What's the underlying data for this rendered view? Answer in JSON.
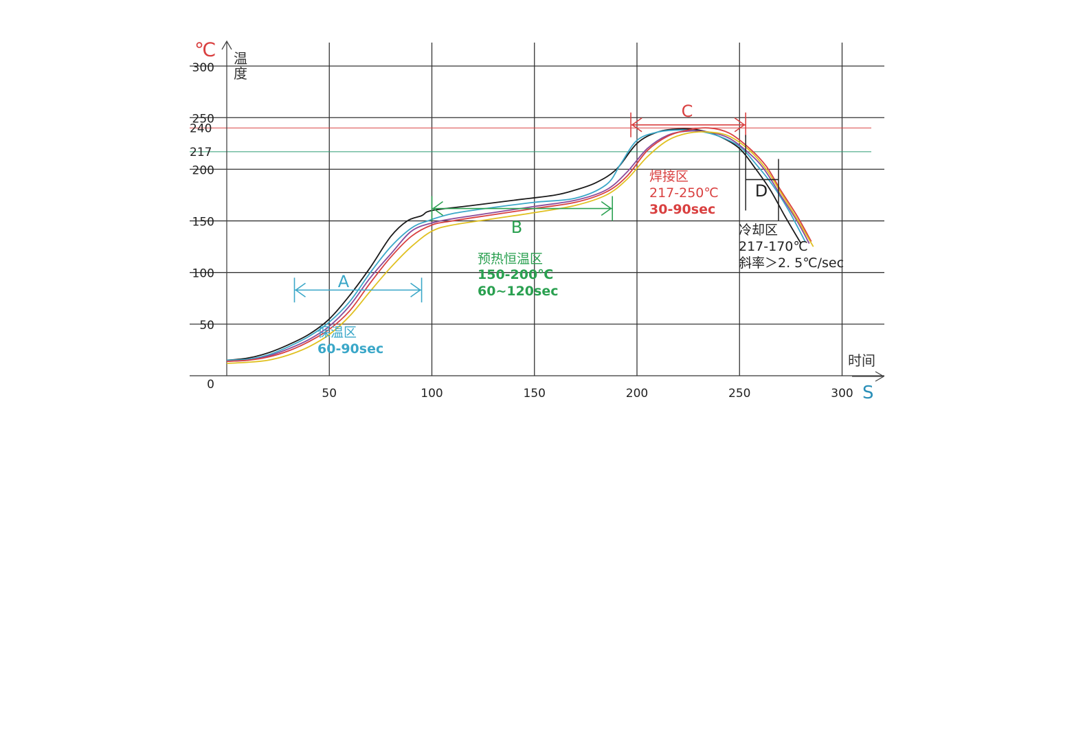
{
  "chart_data": {
    "type": "line",
    "x_unit": "S",
    "x_label": "时间",
    "y_unit": "℃",
    "y_label": "温度",
    "x_ticks": [
      50,
      100,
      150,
      200,
      250,
      300
    ],
    "y_ticks": [
      0,
      50,
      100,
      150,
      200,
      250,
      300
    ],
    "xlim": [
      0,
      320
    ],
    "ylim": [
      0,
      300
    ],
    "grid": true,
    "reference_lines": [
      {
        "value": 240,
        "label": "240",
        "color": "#d94040"
      },
      {
        "value": 217,
        "label": "217",
        "color": "#2a9a70"
      }
    ],
    "zones": [
      {
        "letter": "A",
        "color": "#3aa7c8",
        "x_start": 33,
        "x_end": 95,
        "y": 83,
        "lines": [
          "保温区",
          "60-90sec"
        ]
      },
      {
        "letter": "B",
        "color": "#2aa050",
        "x_start": 100,
        "x_end": 188,
        "y": 162,
        "lines": [
          "预热恒温区",
          "150-200℃",
          "60~120sec"
        ]
      },
      {
        "letter": "C",
        "color": "#d94040",
        "x_start": 197,
        "x_end": 253,
        "y": 243,
        "lines": [
          "焊接区",
          "217-250℃",
          "30-90sec"
        ]
      },
      {
        "letter": "D",
        "color": "#222222",
        "x_start": 253,
        "x_end": 269,
        "y": 190,
        "lines": [
          "冷却区",
          "217-170℃",
          "斜率＞2. 5℃/sec"
        ]
      }
    ],
    "series": [
      {
        "color": "#1a1a1a",
        "x": [
          0,
          10,
          20,
          30,
          40,
          50,
          60,
          70,
          80,
          88,
          95,
          100,
          120,
          140,
          160,
          170,
          180,
          190,
          200,
          210,
          220,
          230,
          240,
          250,
          258,
          265,
          272,
          280
        ],
        "y": [
          15,
          17,
          22,
          30,
          40,
          55,
          78,
          105,
          135,
          150,
          155,
          160,
          165,
          170,
          175,
          180,
          187,
          200,
          225,
          236,
          239,
          238,
          232,
          220,
          200,
          180,
          155,
          128
        ]
      },
      {
        "color": "#3aa7c8",
        "x": [
          0,
          10,
          20,
          30,
          40,
          50,
          60,
          70,
          80,
          90,
          98,
          110,
          130,
          150,
          170,
          185,
          192,
          200,
          210,
          220,
          230,
          240,
          250,
          258,
          266,
          274,
          282
        ],
        "y": [
          15,
          16,
          20,
          28,
          38,
          52,
          72,
          100,
          125,
          143,
          150,
          157,
          163,
          168,
          172,
          185,
          205,
          228,
          236,
          238,
          237,
          232,
          222,
          205,
          185,
          160,
          130
        ]
      },
      {
        "color": "#8a4a9a",
        "x": [
          0,
          10,
          20,
          30,
          40,
          50,
          60,
          70,
          80,
          90,
          100,
          110,
          130,
          150,
          170,
          185,
          195,
          205,
          215,
          225,
          235,
          245,
          255,
          262,
          270,
          278,
          284
        ],
        "y": [
          14,
          15,
          19,
          26,
          35,
          48,
          68,
          95,
          118,
          140,
          148,
          152,
          158,
          164,
          170,
          180,
          197,
          220,
          233,
          237,
          236,
          230,
          215,
          200,
          175,
          150,
          128
        ]
      },
      {
        "color": "#d94040",
        "x": [
          0,
          10,
          20,
          30,
          40,
          50,
          60,
          70,
          80,
          90,
          100,
          110,
          130,
          150,
          170,
          185,
          195,
          205,
          215,
          225,
          235,
          245,
          255,
          263,
          270,
          278,
          285
        ],
        "y": [
          14,
          15,
          18,
          24,
          33,
          45,
          63,
          90,
          115,
          135,
          146,
          150,
          156,
          162,
          168,
          178,
          193,
          218,
          232,
          238,
          240,
          235,
          220,
          203,
          180,
          155,
          130
        ]
      },
      {
        "color": "#e0c020",
        "x": [
          0,
          10,
          20,
          30,
          40,
          50,
          60,
          70,
          80,
          90,
          100,
          110,
          130,
          150,
          170,
          185,
          195,
          205,
          215,
          225,
          235,
          245,
          255,
          263,
          270,
          278,
          286
        ],
        "y": [
          12,
          13,
          15,
          20,
          28,
          40,
          58,
          82,
          105,
          125,
          140,
          146,
          152,
          158,
          165,
          175,
          190,
          212,
          228,
          235,
          236,
          232,
          218,
          200,
          178,
          152,
          125
        ]
      }
    ]
  }
}
